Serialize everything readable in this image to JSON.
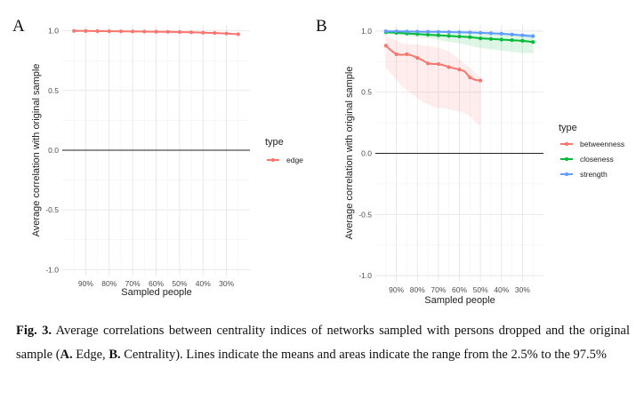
{
  "panels": [
    {
      "letter": "A",
      "chart_data": {
        "type": "line",
        "x_categories": [
          "90%",
          "80%",
          "70%",
          "60%",
          "50%",
          "40%",
          "30%"
        ],
        "x_points": [
          95,
          90,
          85,
          80,
          75,
          70,
          65,
          60,
          55,
          50,
          45,
          40,
          35,
          30,
          25
        ],
        "xlabel": "Sampled people",
        "ylabel": "Average correlation with original sample",
        "ylim": [
          -1.05,
          1.05
        ],
        "yticks": [
          "1.0",
          "0.5",
          "0.0",
          "-0.5",
          "-1.0"
        ],
        "grid": true,
        "hline": 0,
        "legend": {
          "title": "type",
          "placement": "right"
        },
        "series": [
          {
            "name": "edge",
            "color": "#F8766D",
            "values": [
              1.0,
              0.999,
              0.998,
              0.997,
              0.996,
              0.995,
              0.994,
              0.993,
              0.992,
              0.99,
              0.988,
              0.985,
              0.982,
              0.978,
              0.972
            ],
            "lower": [
              0.999,
              0.998,
              0.997,
              0.996,
              0.995,
              0.994,
              0.993,
              0.992,
              0.99,
              0.988,
              0.986,
              0.982,
              0.978,
              0.973,
              0.965
            ],
            "upper": [
              1.0,
              1.0,
              0.999,
              0.998,
              0.997,
              0.996,
              0.995,
              0.994,
              0.993,
              0.992,
              0.99,
              0.988,
              0.985,
              0.982,
              0.978
            ]
          }
        ]
      }
    },
    {
      "letter": "B",
      "chart_data": {
        "type": "line",
        "x_categories": [
          "90%",
          "80%",
          "70%",
          "60%",
          "50%",
          "40%",
          "30%"
        ],
        "x_points": [
          95,
          90,
          85,
          80,
          75,
          70,
          65,
          60,
          55,
          50,
          45,
          40,
          35,
          30,
          25
        ],
        "xlabel": "Sampled people",
        "ylabel": "Average correlation with original sample",
        "ylim": [
          -1.05,
          1.05
        ],
        "yticks": [
          "1.0",
          "0.5",
          "0.0",
          "-0.5",
          "-1.0"
        ],
        "grid": true,
        "hline": 0,
        "legend": {
          "title": "type",
          "placement": "right"
        },
        "series": [
          {
            "name": "betweenness",
            "color": "#F8766D",
            "values": [
              0.88,
              0.84,
              0.81,
              0.805,
              0.81,
              0.8,
              0.78,
              0.76,
              0.735,
              0.73,
              0.73,
              0.72,
              0.705,
              0.695,
              0.685,
              0.67,
              0.62,
              0.6,
              0.595
            ],
            "x_override": [
              95,
              92.5,
              90,
              87.5,
              85,
              82.5,
              80,
              77.5,
              75,
              72.5,
              70,
              67.5,
              65,
              62.5,
              60,
              57.5,
              55,
              52.5,
              50
            ],
            "lower": [
              0.7,
              0.65,
              0.6,
              0.55,
              0.52,
              0.48,
              0.45,
              0.42,
              0.4,
              0.38,
              0.37,
              0.37,
              0.36,
              0.35,
              0.34,
              0.33,
              0.3,
              0.26,
              0.22
            ],
            "upper": [
              0.96,
              0.94,
              0.92,
              0.9,
              0.89,
              0.89,
              0.89,
              0.88,
              0.88,
              0.87,
              0.86,
              0.85,
              0.83,
              0.8,
              0.77,
              0.73,
              0.7,
              0.66,
              0.62
            ]
          },
          {
            "name": "closeness",
            "color": "#00BA38",
            "values": [
              0.99,
              0.985,
              0.98,
              0.975,
              0.97,
              0.965,
              0.96,
              0.955,
              0.95,
              0.94,
              0.935,
              0.93,
              0.925,
              0.92,
              0.91
            ],
            "lower": [
              0.98,
              0.97,
              0.96,
              0.95,
              0.94,
              0.93,
              0.91,
              0.9,
              0.88,
              0.86,
              0.85,
              0.84,
              0.83,
              0.82,
              0.82
            ],
            "upper": [
              1.0,
              0.998,
              0.996,
              0.994,
              0.992,
              0.99,
              0.988,
              0.986,
              0.984,
              0.982,
              0.98,
              0.978,
              0.976,
              0.974,
              0.972
            ]
          },
          {
            "name": "strength",
            "color": "#619CFF",
            "values": [
              0.998,
              0.997,
              0.996,
              0.995,
              0.994,
              0.993,
              0.992,
              0.99,
              0.988,
              0.985,
              0.982,
              0.978,
              0.972,
              0.965,
              0.958
            ],
            "lower": [
              0.995,
              0.994,
              0.993,
              0.991,
              0.989,
              0.987,
              0.985,
              0.982,
              0.978,
              0.974,
              0.97,
              0.964,
              0.957,
              0.948,
              0.94
            ],
            "upper": [
              1.0,
              1.0,
              0.999,
              0.999,
              0.998,
              0.997,
              0.996,
              0.995,
              0.994,
              0.993,
              0.99,
              0.987,
              0.984,
              0.98,
              0.975
            ]
          }
        ]
      }
    }
  ],
  "caption": {
    "prefix": "Fig. 3.",
    "text1": " Average correlations between centrality indices of networks sampled with persons dropped and the original sample (",
    "a_label": "A.",
    "a_text": " Edge, ",
    "b_label": "B.",
    "b_text": " Centrality). Lines indicate the means and areas indicate the range from the 2.5% to the 97.5%"
  }
}
